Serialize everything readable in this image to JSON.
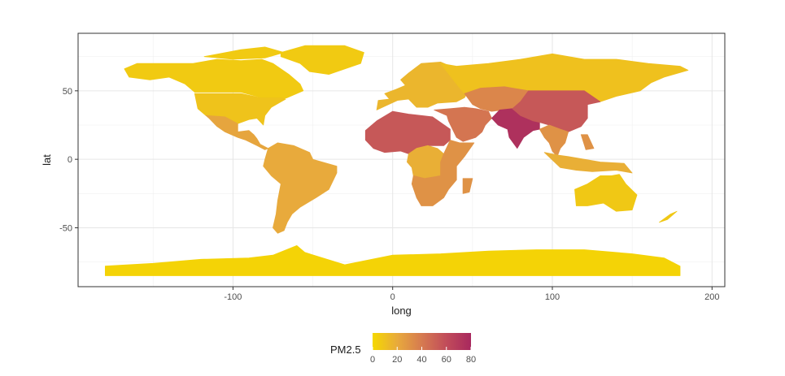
{
  "chart_data": {
    "type": "choropleth-map",
    "xlabel": "long",
    "ylabel": "lat",
    "xlim": [
      -197,
      208
    ],
    "ylim": [
      -93,
      92
    ],
    "x_ticks": [
      -100,
      0,
      100,
      200
    ],
    "y_ticks": [
      -50,
      0,
      50
    ],
    "x_tick_labels": [
      "-100",
      "0",
      "100",
      "200"
    ],
    "y_tick_labels": [
      "-50",
      "0",
      "50"
    ],
    "grid": true,
    "legend": {
      "title": "PM2.5",
      "position": "bottom",
      "min": 0,
      "max": 80,
      "ticks": [
        0,
        20,
        40,
        60,
        80
      ],
      "tick_labels": [
        "0",
        "20",
        "40",
        "60",
        "80"
      ],
      "colors": [
        "#f5d800",
        "#e8aa3c",
        "#d67a50",
        "#c14c5a",
        "#a8285e"
      ]
    },
    "regions": [
      {
        "name": "North America (Canada/Alaska/Greenland)",
        "pm25": 6
      },
      {
        "name": "United States",
        "pm25": 9
      },
      {
        "name": "Mexico & Central America",
        "pm25": 22
      },
      {
        "name": "South America",
        "pm25": 20
      },
      {
        "name": "Europe",
        "pm25": 15
      },
      {
        "name": "West Africa / Sahel",
        "pm25": 55
      },
      {
        "name": "Central Africa",
        "pm25": 18
      },
      {
        "name": "East & Southern Africa",
        "pm25": 30
      },
      {
        "name": "Middle East",
        "pm25": 42
      },
      {
        "name": "Russia",
        "pm25": 10
      },
      {
        "name": "Central Asia",
        "pm25": 35
      },
      {
        "name": "India & South Asia",
        "pm25": 75
      },
      {
        "name": "China",
        "pm25": 55
      },
      {
        "name": "Southeast Asia",
        "pm25": 30
      },
      {
        "name": "Indonesia",
        "pm25": 18
      },
      {
        "name": "Australia",
        "pm25": 7
      },
      {
        "name": "Antarctica",
        "pm25": 2
      }
    ]
  }
}
